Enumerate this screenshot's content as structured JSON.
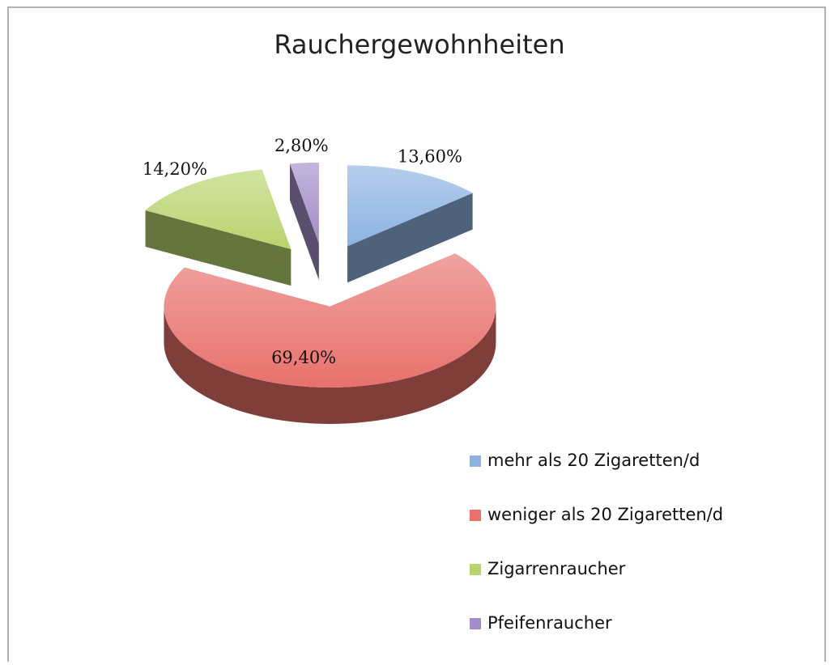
{
  "chart_data": {
    "type": "pie3d",
    "title": "Rauchergewohnheiten",
    "categories": [
      "mehr als 20 Zigaretten/d",
      "weniger als 20 Zigaretten/d",
      "Zigarrenraucher",
      "Pfeifenraucher"
    ],
    "values": [
      13.6,
      69.4,
      14.2,
      2.8
    ],
    "value_labels": [
      "13,60%",
      "69,40%",
      "14,20%",
      "2,80%"
    ],
    "colors": [
      "#8db3e2",
      "#e8716c",
      "#b9d36e",
      "#a48dc9"
    ],
    "legend": "bottom-right"
  }
}
